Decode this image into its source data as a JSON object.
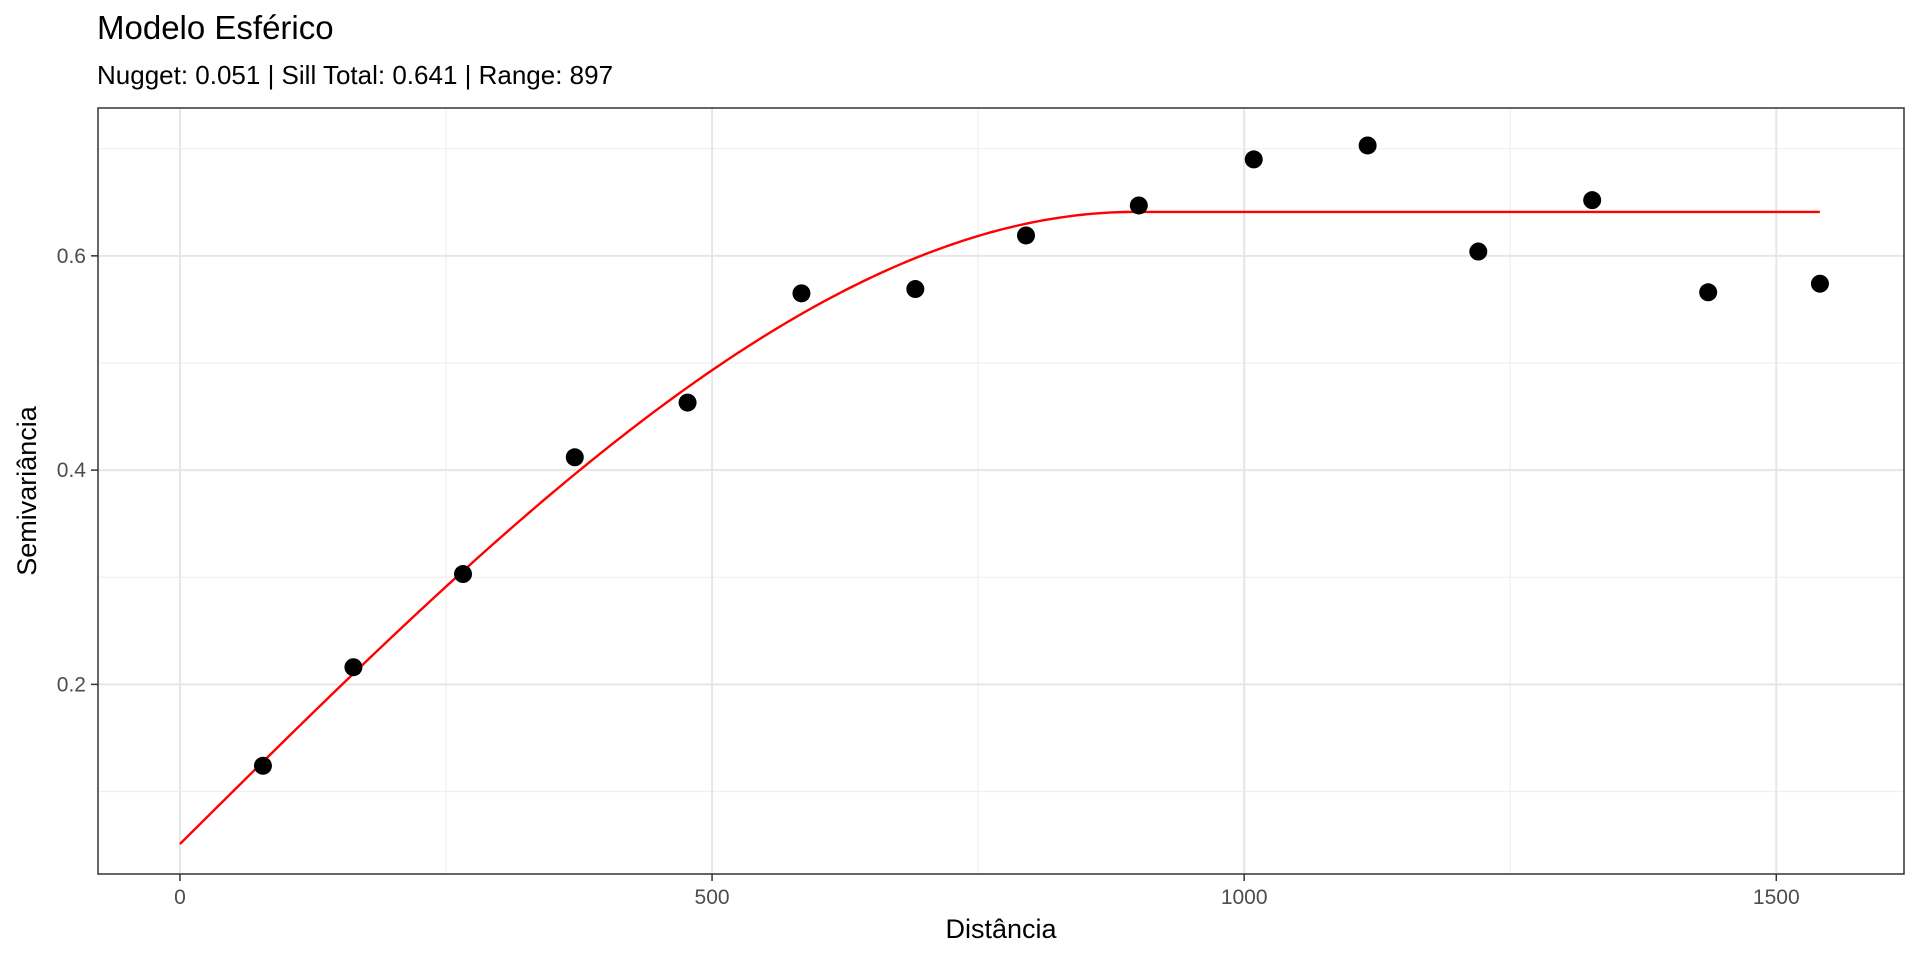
{
  "chart_data": {
    "type": "scatter",
    "title": "Modelo Esférico",
    "subtitle": "Nugget: 0.051 | Sill Total: 0.641 | Range: 897",
    "xlabel": "Distância",
    "ylabel": "Semivariância",
    "xlim": [
      -77,
      1620
    ],
    "ylim": [
      0.023,
      0.738
    ],
    "x_ticks": [
      0,
      500,
      1000,
      1500
    ],
    "x_tick_labels": [
      "0",
      "500",
      "1000",
      "1500"
    ],
    "y_ticks": [
      0.2,
      0.4,
      0.6
    ],
    "y_tick_labels": [
      "0.2",
      "0.4",
      "0.6"
    ],
    "grid": true,
    "legend": "none",
    "series": [
      {
        "kind": "points",
        "color": "#000000",
        "x": [
          78,
          163,
          266,
          371,
          477,
          584,
          691,
          795,
          901,
          1009,
          1116,
          1220,
          1327,
          1436,
          1541
        ],
        "y": [
          0.124,
          0.216,
          0.303,
          0.412,
          0.463,
          0.565,
          0.569,
          0.619,
          0.647,
          0.69,
          0.703,
          0.604,
          0.652,
          0.566,
          0.574
        ]
      },
      {
        "kind": "model-line",
        "model": "spherical",
        "color": "#ff0000",
        "nugget": 0.051,
        "sill_total": 0.641,
        "range": 897,
        "x_start": 0,
        "x_end": 1541
      }
    ]
  }
}
